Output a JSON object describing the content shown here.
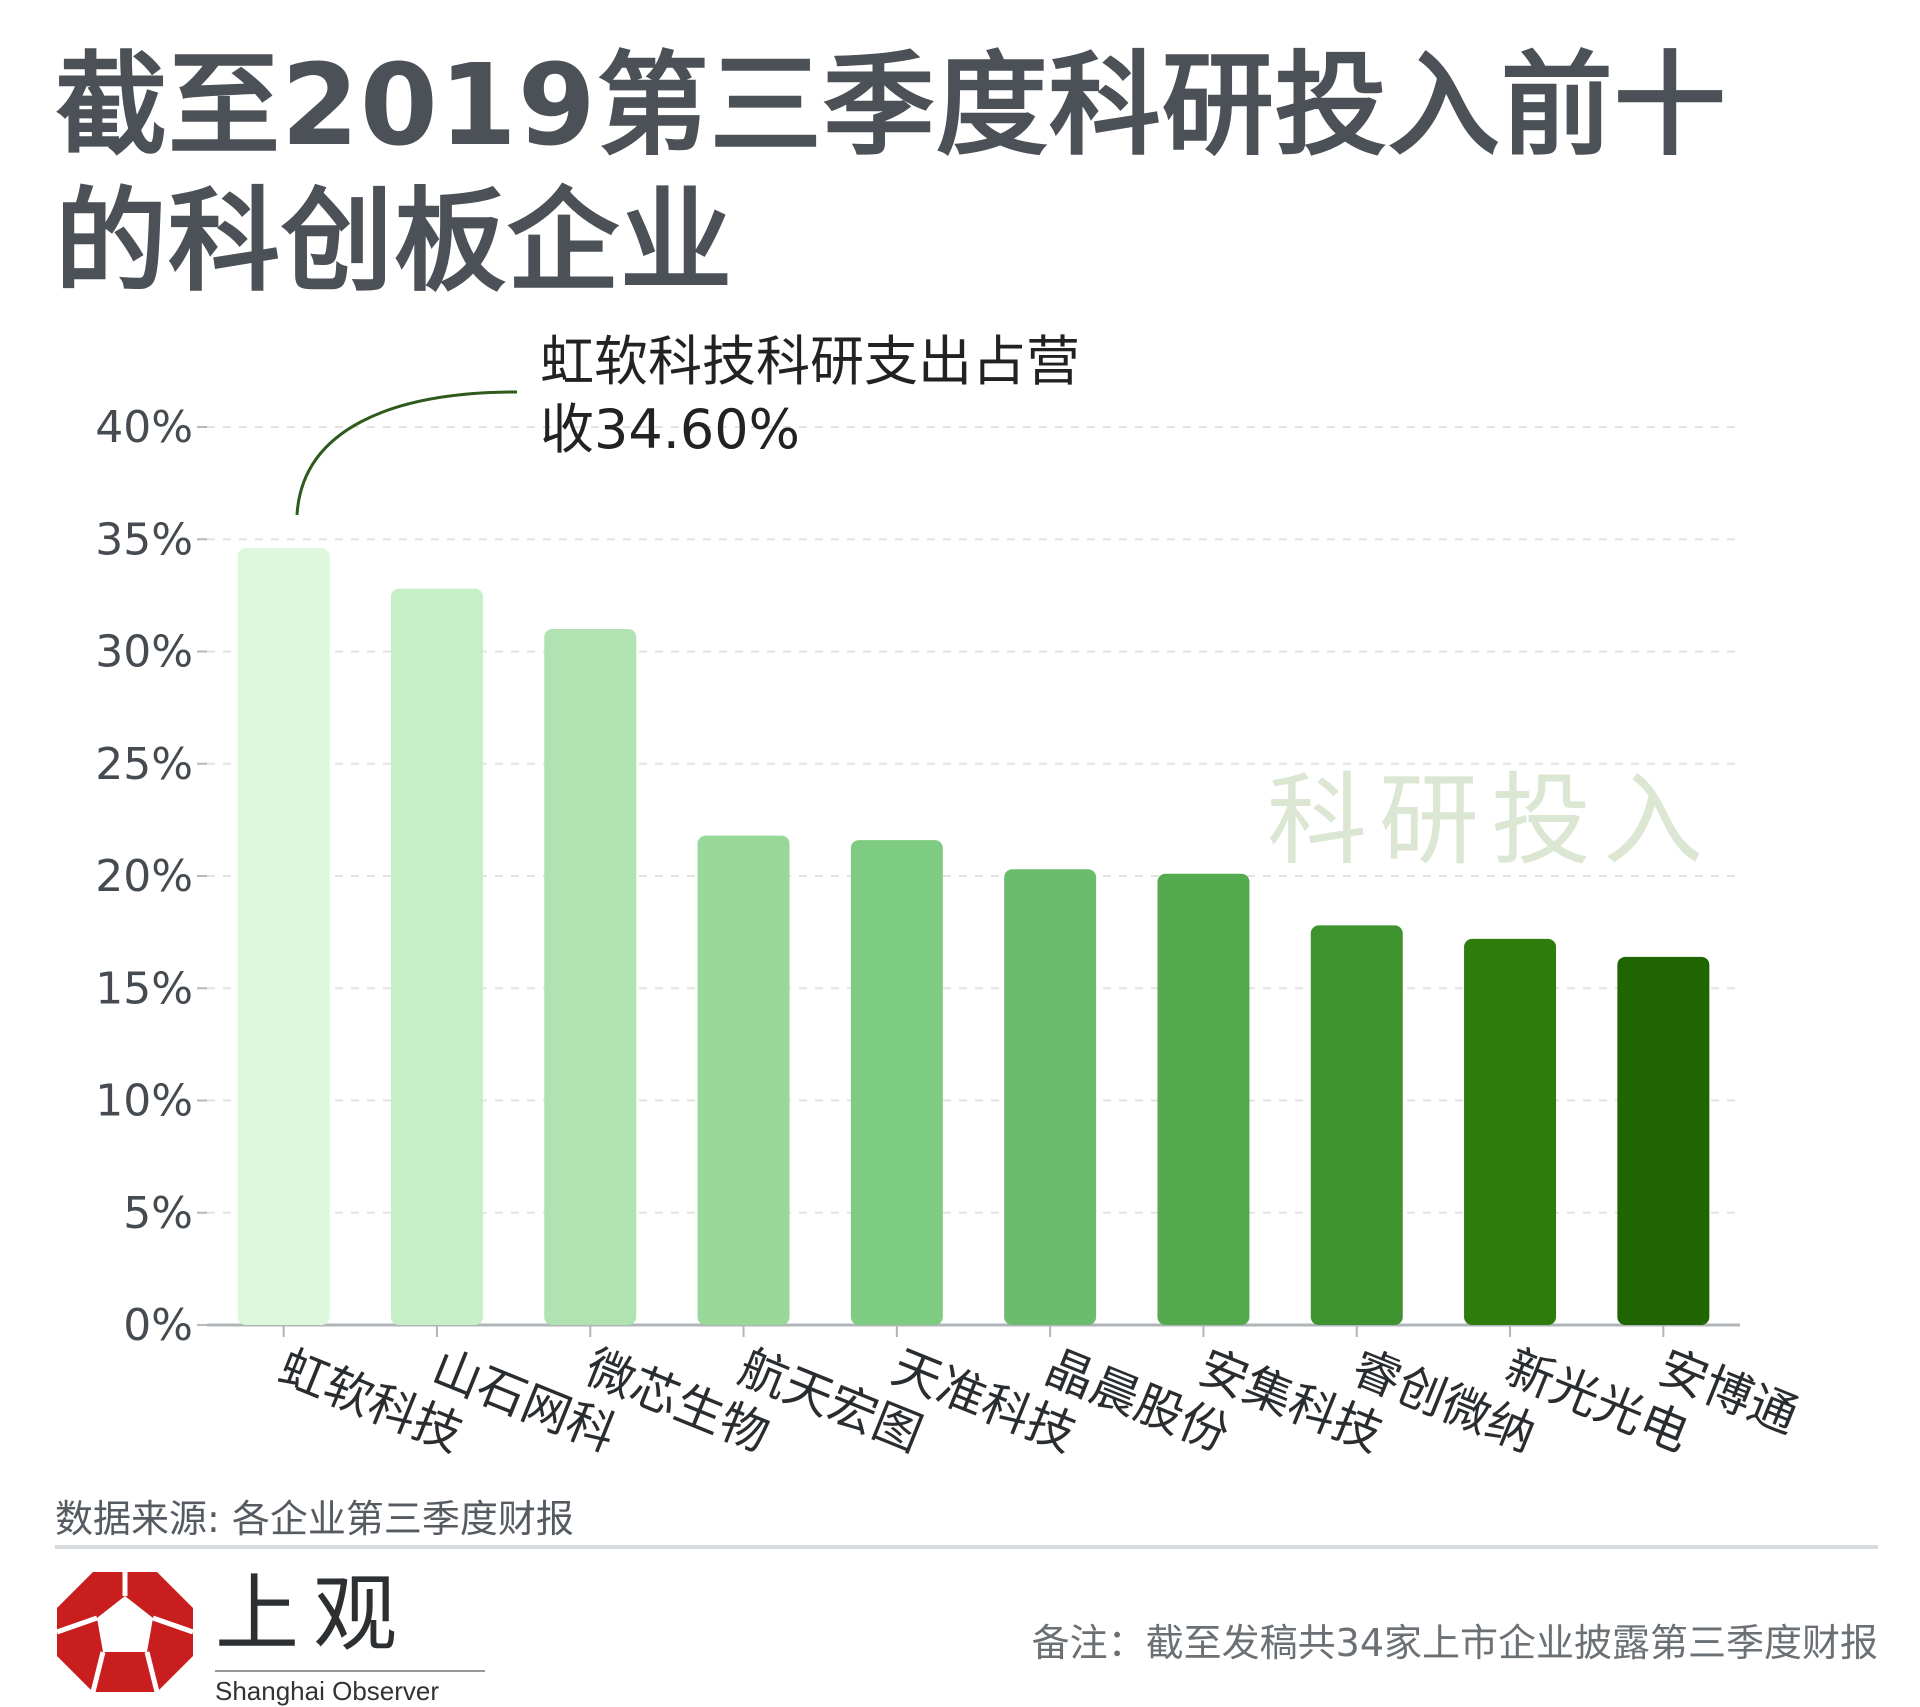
{
  "title": "截至2019第三季度科研投入前十的科创板企业",
  "annotation": {
    "line1": "虹软科技科研支出占营",
    "line2": "收34.60%"
  },
  "watermark": "科研投入",
  "source": "数据来源: 各企业第三季度财报",
  "note": "备注：截至发稿共34家上市企业披露第三季度财报",
  "logo": {
    "cn": "上观",
    "en": "Shanghai Observer"
  },
  "colors": {
    "annotation_line": "#2f5a1e",
    "bars": [
      "#dcf7dc",
      "#c6efc7",
      "#b0e3b1",
      "#99d899",
      "#7ecc82",
      "#6bbd6d",
      "#55aa4f",
      "#3e9230",
      "#2e7c0b",
      "#1f6502"
    ],
    "logo": "#c81e1e"
  },
  "chart_data": {
    "type": "bar",
    "categories": [
      "虹软科技",
      "山石网科",
      "微芯生物",
      "航天宏图",
      "天准科技",
      "晶晨股份",
      "安集科技",
      "睿创微纳",
      "新光光电",
      "安博通"
    ],
    "values": [
      34.6,
      32.8,
      31.0,
      21.8,
      21.6,
      20.3,
      20.1,
      17.8,
      17.2,
      16.4
    ],
    "yticks": [
      "0%",
      "5%",
      "10%",
      "15%",
      "20%",
      "25%",
      "30%",
      "35%",
      "40%"
    ],
    "ylim": [
      0,
      40
    ],
    "grid": true
  }
}
